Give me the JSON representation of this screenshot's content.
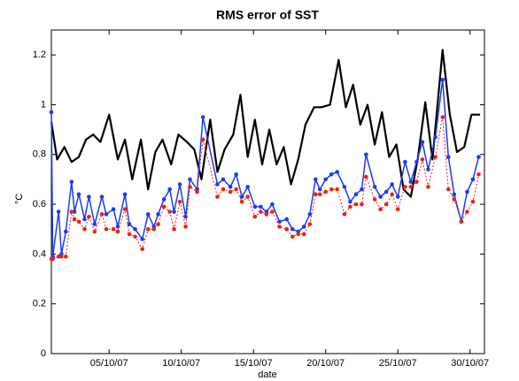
{
  "chart_data": {
    "type": "line",
    "title": "RMS error of SST",
    "xlabel": "date",
    "ylabel": "°C",
    "xlim": [
      1,
      31
    ],
    "ylim": [
      0,
      1.3
    ],
    "xticks": [
      {
        "value": 5,
        "label": "05/10/07"
      },
      {
        "value": 10,
        "label": "10/10/07"
      },
      {
        "value": 15,
        "label": "15/10/07"
      },
      {
        "value": 20,
        "label": "20/10/07"
      },
      {
        "value": 25,
        "label": "25/10/07"
      },
      {
        "value": 30,
        "label": "30/10/07"
      }
    ],
    "yticks": [
      0,
      0.2,
      0.4,
      0.6,
      0.8,
      1,
      1.2
    ],
    "series": [
      {
        "color": "#000000",
        "x": [
          1.0,
          1.4,
          1.9,
          2.4,
          2.9,
          3.4,
          3.9,
          4.4,
          5.0,
          5.6,
          6.1,
          6.6,
          7.2,
          7.7,
          8.2,
          8.7,
          9.3,
          9.8,
          10.4,
          10.9,
          11.4,
          12.0,
          12.5,
          13.0,
          13.6,
          14.1,
          14.6,
          15.1,
          15.6,
          16.1,
          16.6,
          17.1,
          17.6,
          18.1,
          18.6,
          19.2,
          19.7,
          20.3,
          20.9,
          21.4,
          21.9,
          22.4,
          22.9,
          23.4,
          23.9,
          24.4,
          24.9,
          25.4,
          25.9,
          26.4,
          26.9,
          27.4,
          28.1,
          28.6,
          29.1,
          29.6,
          30.1,
          30.7
        ],
        "values": [
          0.93,
          0.78,
          0.83,
          0.77,
          0.79,
          0.86,
          0.88,
          0.85,
          0.96,
          0.78,
          0.86,
          0.7,
          0.86,
          0.66,
          0.81,
          0.86,
          0.76,
          0.88,
          0.85,
          0.82,
          0.7,
          0.94,
          0.73,
          0.82,
          0.88,
          1.04,
          0.79,
          0.94,
          0.76,
          0.9,
          0.76,
          0.83,
          0.68,
          0.78,
          0.92,
          0.99,
          0.99,
          1.0,
          1.18,
          0.99,
          1.08,
          0.92,
          1.0,
          0.84,
          0.97,
          0.79,
          0.84,
          0.66,
          0.63,
          0.79,
          1.01,
          0.78,
          1.22,
          0.96,
          0.81,
          0.83,
          0.96,
          0.96
        ]
      },
      {
        "color": "#1a3cf0",
        "markers": true,
        "x": [
          1.0,
          1.1,
          1.5,
          1.7,
          2.0,
          2.4,
          2.6,
          2.9,
          3.3,
          3.6,
          4.0,
          4.5,
          4.8,
          5.3,
          5.6,
          6.1,
          6.4,
          6.8,
          7.3,
          7.7,
          8.1,
          8.4,
          8.8,
          9.2,
          9.5,
          9.9,
          10.3,
          10.6,
          11.1,
          11.5,
          12.5,
          12.9,
          13.4,
          13.8,
          14.2,
          14.6,
          15.1,
          15.5,
          15.9,
          16.3,
          16.8,
          17.3,
          17.7,
          18.1,
          18.5,
          18.9,
          19.3,
          19.6,
          20.0,
          20.4,
          20.8,
          21.3,
          21.7,
          22.1,
          22.5,
          22.8,
          23.4,
          23.8,
          24.2,
          24.6,
          25.0,
          25.5,
          25.9,
          26.3,
          26.7,
          27.1,
          27.6,
          28.1,
          28.5,
          28.9,
          29.4,
          29.8,
          30.2,
          30.6
        ],
        "values": [
          0.97,
          0.39,
          0.57,
          0.4,
          0.49,
          0.69,
          0.57,
          0.64,
          0.54,
          0.63,
          0.52,
          0.63,
          0.56,
          0.58,
          0.51,
          0.64,
          0.52,
          0.5,
          0.46,
          0.56,
          0.51,
          0.56,
          0.62,
          0.66,
          0.57,
          0.68,
          0.55,
          0.7,
          0.66,
          0.95,
          0.68,
          0.7,
          0.67,
          0.72,
          0.63,
          0.67,
          0.59,
          0.59,
          0.57,
          0.6,
          0.53,
          0.54,
          0.5,
          0.49,
          0.51,
          0.56,
          0.7,
          0.66,
          0.7,
          0.72,
          0.73,
          0.67,
          0.61,
          0.64,
          0.66,
          0.8,
          0.67,
          0.63,
          0.65,
          0.68,
          0.63,
          0.77,
          0.69,
          0.77,
          0.85,
          0.74,
          0.87,
          1.1,
          0.79,
          0.64,
          0.53,
          0.65,
          0.7,
          0.79
        ]
      },
      {
        "color": "#f02010",
        "markers": true,
        "dashed": true,
        "x": [
          1.0,
          1.1,
          1.5,
          1.7,
          2.0,
          2.4,
          2.6,
          2.9,
          3.3,
          3.6,
          4.0,
          4.5,
          4.8,
          5.3,
          5.6,
          6.1,
          6.4,
          6.8,
          7.3,
          7.7,
          8.1,
          8.4,
          8.8,
          9.2,
          9.5,
          9.9,
          10.3,
          10.6,
          11.1,
          11.5,
          12.5,
          12.9,
          13.4,
          13.8,
          14.2,
          14.6,
          15.1,
          15.5,
          15.9,
          16.3,
          16.8,
          17.3,
          17.7,
          18.1,
          18.5,
          18.9,
          19.3,
          19.6,
          20.0,
          20.4,
          20.8,
          21.3,
          21.7,
          22.1,
          22.5,
          22.8,
          23.4,
          23.8,
          24.2,
          24.6,
          25.0,
          25.5,
          25.9,
          26.3,
          26.7,
          27.1,
          27.6,
          28.1,
          28.5,
          28.9,
          29.4,
          29.8,
          30.2,
          30.6
        ],
        "values": [
          0.38,
          0.38,
          0.39,
          0.39,
          0.39,
          0.57,
          0.54,
          0.53,
          0.5,
          0.55,
          0.49,
          0.56,
          0.5,
          0.5,
          0.49,
          0.58,
          0.48,
          0.47,
          0.42,
          0.5,
          0.5,
          0.52,
          0.59,
          0.57,
          0.5,
          0.61,
          0.51,
          0.67,
          0.65,
          0.86,
          0.63,
          0.66,
          0.65,
          0.66,
          0.61,
          0.63,
          0.55,
          0.57,
          0.56,
          0.57,
          0.51,
          0.5,
          0.47,
          0.48,
          0.48,
          0.52,
          0.64,
          0.64,
          0.65,
          0.66,
          0.66,
          0.56,
          0.59,
          0.6,
          0.6,
          0.71,
          0.62,
          0.58,
          0.6,
          0.64,
          0.58,
          0.67,
          0.67,
          0.69,
          0.78,
          0.67,
          0.79,
          0.95,
          0.66,
          0.62,
          0.53,
          0.57,
          0.61,
          0.72
        ]
      }
    ]
  }
}
